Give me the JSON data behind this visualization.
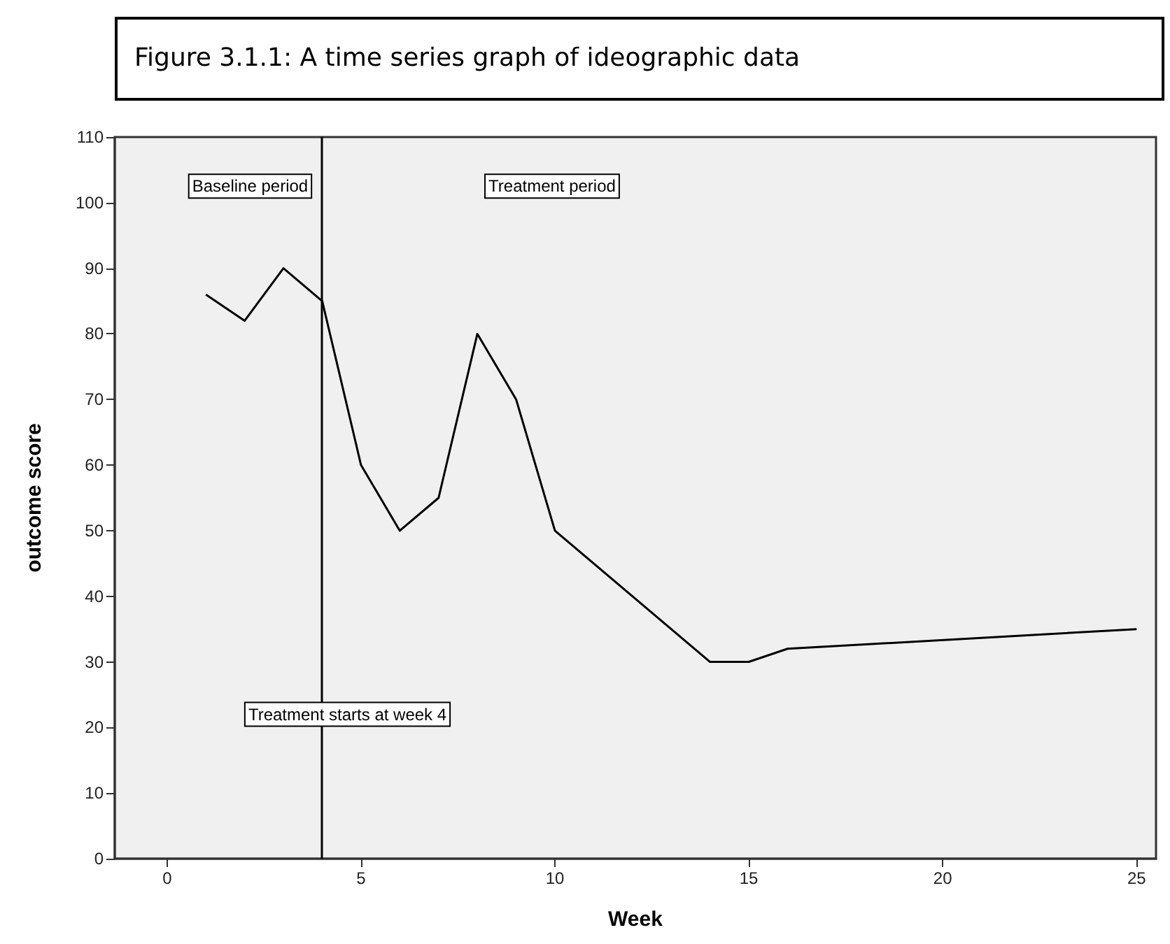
{
  "chart_data": {
    "type": "line",
    "title": "Figure 3.1.1: A time series graph of ideographic data",
    "xlabel": "Week",
    "ylabel": "outcome score",
    "x": [
      1,
      2,
      3,
      4,
      5,
      6,
      7,
      8,
      9,
      10,
      14,
      15,
      16,
      25
    ],
    "series": [
      {
        "color": "#000000",
        "values": [
          86,
          82,
          90,
          85,
          60,
          50,
          55,
          80,
          70,
          50,
          30,
          30,
          32,
          35
        ]
      }
    ],
    "xlim": [
      -1.35,
      25.5
    ],
    "xticks": [
      0,
      5,
      10,
      15,
      20,
      25
    ],
    "ylim": [
      0,
      110
    ],
    "yticks": [
      0,
      10,
      20,
      30,
      40,
      50,
      60,
      70,
      80,
      90,
      100,
      110
    ],
    "ref_lines": [
      {
        "axis": "x",
        "value": 4,
        "label": "Treatment starts at week 4",
        "color": "#000000"
      }
    ],
    "annotations": [
      "Baseline period",
      "Treatment period"
    ],
    "marker": "none",
    "line_style": "solid"
  }
}
